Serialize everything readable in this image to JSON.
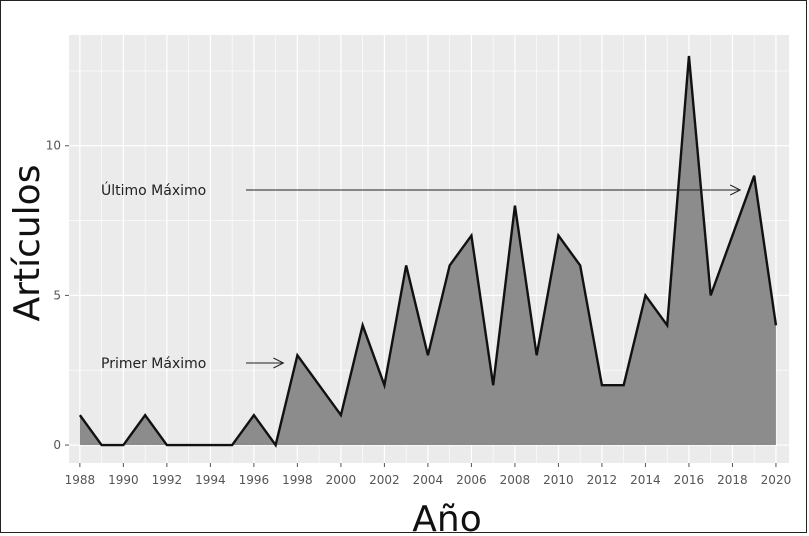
{
  "chart_data": {
    "type": "area",
    "xlabel": "Año",
    "ylabel": "Artículos",
    "x": [
      1988,
      1989,
      1990,
      1991,
      1992,
      1993,
      1994,
      1995,
      1996,
      1997,
      1998,
      1999,
      2000,
      2001,
      2002,
      2003,
      2004,
      2005,
      2006,
      2007,
      2008,
      2009,
      2010,
      2011,
      2012,
      2013,
      2014,
      2015,
      2016,
      2017,
      2018,
      2019,
      2020
    ],
    "values": [
      1,
      0,
      0,
      1,
      0,
      0,
      0,
      0,
      1,
      0,
      3,
      2,
      1,
      4,
      2,
      6,
      3,
      6,
      7,
      2,
      8,
      3,
      7,
      6,
      2,
      2,
      5,
      4,
      13,
      5,
      7,
      9,
      4
    ],
    "xlim": [
      1987.5,
      2020.6
    ],
    "ylim": [
      -0.6,
      13.7
    ],
    "x_ticks": [
      "1988",
      "1990",
      "1992",
      "1994",
      "1996",
      "1998",
      "2000",
      "2002",
      "2004",
      "2006",
      "2008",
      "2010",
      "2012",
      "2014",
      "2016",
      "2018",
      "2020"
    ],
    "y_ticks": [
      "0",
      "5",
      "10"
    ],
    "annotations": [
      {
        "label": "Primer Máximo",
        "x": 1998,
        "y": 3
      },
      {
        "label": "Último Máximo",
        "x": 2019,
        "y": 9
      }
    ],
    "grid": true,
    "colors": {
      "panel": "#ebebeb",
      "grid": "#ffffff",
      "fill": "#8c8c8c",
      "line": "#111111"
    }
  }
}
